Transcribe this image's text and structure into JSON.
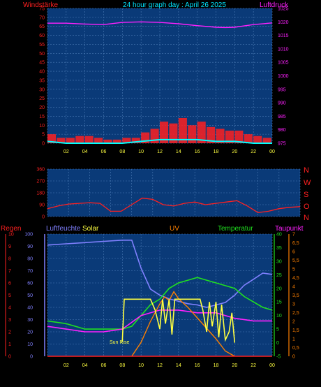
{
  "header": {
    "left_label": "Windstärke",
    "title": "24 hour graph day : April 26 2025",
    "right_label": "Luftdruck"
  },
  "middle": {
    "dir_letters": [
      "N",
      "W",
      "S",
      "O",
      "N"
    ]
  },
  "bottom_header": {
    "regen": "Regen",
    "luftfeuchte": "Luftfeuchte",
    "solar": "Solar",
    "uv": "UV",
    "temperatur": "Temperatur",
    "taupunkt": "Taupunkt"
  },
  "annotation": {
    "sun_rise": "Sun Rise"
  },
  "colors": {
    "background": "#000000",
    "plot_bg": "#0a3a78",
    "grid": "#4a7ab5",
    "wind_axis": "#ff2020",
    "pressure_axis": "#ff20ff",
    "title": "#00e5ff",
    "humidity": "#8080ff",
    "solar": "#ffff40",
    "uv": "#ff8000",
    "temperature": "#20e020",
    "dewpoint": "#ff20ff",
    "rain": "#ff2020"
  },
  "chart_data": [
    {
      "type": "line",
      "title": "24 hour graph day : April 26 2025",
      "x_ticks": [
        "02",
        "04",
        "06",
        "08",
        "10",
        "12",
        "14",
        "16",
        "18",
        "20",
        "22",
        "00"
      ],
      "left_axis": {
        "label": "Windstärke",
        "ticks": [
          "0",
          "5",
          "10",
          "15",
          "20",
          "25",
          "30",
          "35",
          "40",
          "45",
          "50",
          "55",
          "60",
          "65",
          "70",
          "75"
        ],
        "ylim": [
          0,
          75
        ]
      },
      "right_axis": {
        "label": "Luftdruck",
        "ticks": [
          "975",
          "980",
          "985",
          "990",
          "995",
          "1000",
          "1005",
          "1010",
          "1015",
          "1020",
          "1025"
        ],
        "ylim": [
          975,
          1025
        ]
      },
      "series": [
        {
          "name": "Luftdruck",
          "x": [
            0,
            2,
            4,
            6,
            8,
            10,
            12,
            14,
            16,
            18,
            19,
            20,
            22,
            24
          ],
          "y": [
            1019.5,
            1019.5,
            1019.2,
            1019.0,
            1019.8,
            1020.0,
            1019.8,
            1019.3,
            1018.6,
            1018.0,
            1017.9,
            1018.0,
            1019.0,
            1019.6
          ]
        },
        {
          "name": "Windböen",
          "x": [
            0,
            1,
            2,
            3,
            4,
            5,
            6,
            7,
            8,
            9,
            10,
            11,
            12,
            13,
            14,
            15,
            16,
            17,
            18,
            19,
            20,
            21,
            22,
            23,
            24
          ],
          "y": [
            5,
            3,
            3,
            4,
            4,
            3,
            2,
            2,
            3,
            3,
            6,
            8,
            12,
            11,
            14,
            10,
            12,
            9,
            8,
            7,
            7,
            5,
            4,
            3,
            0
          ]
        },
        {
          "name": "Wind",
          "x": [
            0,
            2,
            4,
            6,
            8,
            10,
            12,
            14,
            16,
            18,
            20,
            22,
            24
          ],
          "y": [
            1,
            0,
            0,
            0,
            0,
            1,
            2,
            2,
            2,
            1,
            1,
            0,
            0
          ]
        }
      ]
    },
    {
      "type": "line",
      "x_ticks": [
        "02",
        "04",
        "06",
        "08",
        "10",
        "12",
        "14",
        "16",
        "18",
        "20",
        "22",
        "00"
      ],
      "left_axis": {
        "ticks": [
          "0",
          "90",
          "180",
          "270",
          "360"
        ],
        "ylim": [
          0,
          360
        ]
      },
      "right_axis": {
        "ticks": [
          "N",
          "W",
          "S",
          "O",
          "N"
        ]
      },
      "series": [
        {
          "name": "Windrichtung",
          "x": [
            0,
            1,
            2,
            3,
            4,
            5,
            6,
            7,
            8,
            9,
            10,
            11,
            12,
            13,
            14,
            15,
            16,
            17,
            18,
            19,
            20,
            21,
            22,
            23,
            24
          ],
          "y": [
            60,
            80,
            95,
            100,
            105,
            100,
            40,
            40,
            90,
            140,
            130,
            90,
            80,
            100,
            110,
            90,
            100,
            110,
            120,
            80,
            30,
            40,
            60,
            70,
            75
          ]
        }
      ]
    },
    {
      "type": "line",
      "x_ticks": [
        "02",
        "04",
        "06",
        "08",
        "10",
        "12",
        "14",
        "16",
        "18",
        "20",
        "22",
        "00"
      ],
      "axes": {
        "regen": {
          "label": "Regen",
          "ticks": [
            "0",
            "1",
            "2",
            "3",
            "4",
            "5",
            "6",
            "7",
            "8",
            "9",
            "10"
          ],
          "ylim": [
            0,
            10
          ]
        },
        "luftfeuchte": {
          "label": "Luftfeuchte",
          "ticks": [
            "0",
            "10",
            "20",
            "30",
            "40",
            "50",
            "60",
            "70",
            "80",
            "90",
            "100"
          ],
          "ylim": [
            0,
            100
          ]
        },
        "temperatur": {
          "label": "Temperatur",
          "ticks": [
            "-5",
            "0",
            "5",
            "10",
            "15",
            "20",
            "25",
            "30",
            "35",
            "40"
          ],
          "ylim": [
            -5,
            40
          ]
        },
        "uv": {
          "label": "UV",
          "ticks": [
            "0",
            "0,5",
            "1",
            "1,5",
            "2",
            "2,5",
            "3",
            "3,5",
            "4",
            "4,5",
            "5",
            "5,5",
            "6",
            "6,5",
            "7"
          ],
          "ylim": [
            0,
            7
          ]
        }
      },
      "series": [
        {
          "name": "Luftfeuchte",
          "x": [
            0,
            2,
            4,
            6,
            8,
            9,
            10,
            11,
            12,
            13,
            14,
            15,
            16,
            17,
            18,
            19,
            20,
            21,
            22,
            23,
            24
          ],
          "y": [
            91,
            92,
            93,
            94,
            95,
            95,
            72,
            55,
            50,
            47,
            45,
            43,
            42,
            40,
            42,
            44,
            50,
            58,
            63,
            68,
            67
          ]
        },
        {
          "name": "Temperatur",
          "x": [
            0,
            2,
            4,
            6,
            8,
            9,
            10,
            11,
            12,
            13,
            14,
            15,
            16,
            17,
            18,
            19,
            20,
            21,
            22,
            23,
            24
          ],
          "y": [
            8,
            7,
            5,
            5,
            5,
            6,
            10,
            14,
            16,
            20,
            22,
            23,
            24,
            23,
            22,
            21,
            20,
            17,
            15,
            13,
            12
          ]
        },
        {
          "name": "Taupunkt",
          "x": [
            0,
            2,
            4,
            6,
            8,
            10,
            12,
            14,
            16,
            18,
            20,
            22,
            24
          ],
          "y": [
            6,
            5,
            4,
            4,
            5,
            10,
            12,
            12,
            11,
            11,
            9,
            8,
            8
          ]
        },
        {
          "name": "Solar",
          "x": [
            7.9,
            8.0,
            8.2,
            9.2,
            9.5,
            10.5,
            11.0,
            11.5,
            12.0,
            12.3,
            12.6,
            13.0,
            13.3,
            13.6,
            14.0,
            16.3,
            16.6,
            17.0,
            17.3,
            17.6,
            18.0,
            18.3,
            18.6,
            19.0,
            19.4,
            19.7,
            20.0
          ],
          "y": [
            0,
            0.6,
            16,
            16,
            16,
            16,
            16,
            12,
            5,
            16,
            7,
            16,
            3,
            16,
            16,
            16,
            12,
            4,
            15,
            6,
            15,
            2,
            14,
            1,
            4,
            11,
            0
          ]
        },
        {
          "name": "UV",
          "x": [
            9.0,
            10.0,
            11.0,
            12.0,
            12.5,
            13.0,
            13.5,
            14.0,
            15.0,
            16.0,
            17.0,
            18.0,
            19.0,
            20.0
          ],
          "y": [
            0,
            0.8,
            2.0,
            3.0,
            3.4,
            3.2,
            3.7,
            3.3,
            2.8,
            2.2,
            1.6,
            1.0,
            0.3,
            0
          ]
        },
        {
          "name": "Regen",
          "x": [
            0,
            24
          ],
          "y": [
            0,
            0
          ]
        }
      ]
    }
  ]
}
